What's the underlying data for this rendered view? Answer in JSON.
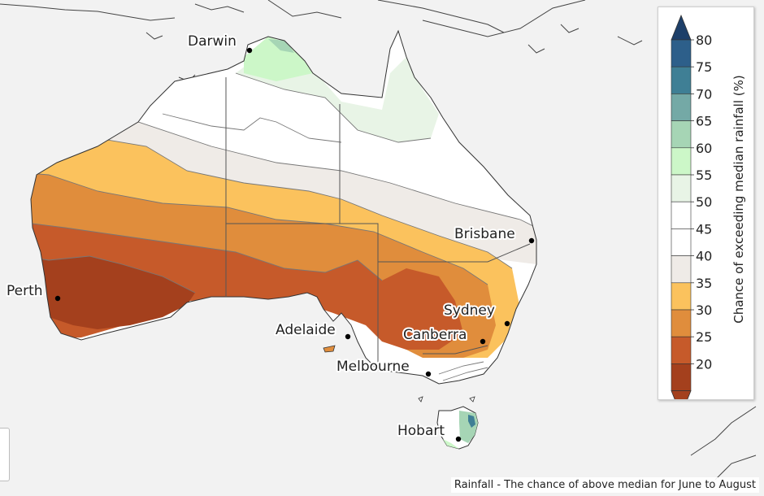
{
  "map": {
    "caption": "Rainfall - The chance of above median for June to August",
    "cities": [
      {
        "name": "Darwin"
      },
      {
        "name": "Brisbane"
      },
      {
        "name": "Perth"
      },
      {
        "name": "Sydney"
      },
      {
        "name": "Adelaide"
      },
      {
        "name": "Canberra"
      },
      {
        "name": "Melbourne"
      },
      {
        "name": "Hobart"
      }
    ],
    "regions": [
      {
        "id": "top-end-north",
        "range": "60-65"
      },
      {
        "id": "top-end",
        "range": "55-60"
      },
      {
        "id": "north",
        "range": "50-55"
      },
      {
        "id": "central-north",
        "range": "45-50"
      },
      {
        "id": "central",
        "range": "40-45"
      },
      {
        "id": "mid-south",
        "range": "35-40"
      },
      {
        "id": "south",
        "range": "30-35"
      },
      {
        "id": "far-south",
        "range": "25-30"
      },
      {
        "id": "southwest",
        "range": "20-25"
      }
    ]
  },
  "legend": {
    "title": "Chance of exceeding median rainfall (%)",
    "ticks": [
      "80",
      "75",
      "70",
      "65",
      "60",
      "55",
      "50",
      "45",
      "40",
      "35",
      "30",
      "25",
      "20"
    ],
    "bands": [
      {
        "range": "75-80",
        "color": "#2d5f8a"
      },
      {
        "range": "70-75",
        "color": "#3f7f95"
      },
      {
        "range": "65-70",
        "color": "#74a9a6"
      },
      {
        "range": "60-65",
        "color": "#a6d5b5"
      },
      {
        "range": "55-60",
        "color": "#ccf7c8"
      },
      {
        "range": "50-55",
        "color": "#e8f4e6"
      },
      {
        "range": "45-50",
        "color": "#ffffff"
      },
      {
        "range": "40-45",
        "color": "#ffffff"
      },
      {
        "range": "35-40",
        "color": "#efebe7"
      },
      {
        "range": "30-35",
        "color": "#fbc25d"
      },
      {
        "range": "25-30",
        "color": "#e08d3c"
      },
      {
        "range": "20-25",
        "color": "#c65a2a"
      },
      {
        "range": "below 20",
        "color": "#a4401d"
      }
    ],
    "top_arrow_color": "#1d3f69",
    "bottom_arrow_color": "#a4401d"
  },
  "colors": {
    "ocean": "#f2f2f2",
    "border": "#555555",
    "contour": "#777777"
  }
}
